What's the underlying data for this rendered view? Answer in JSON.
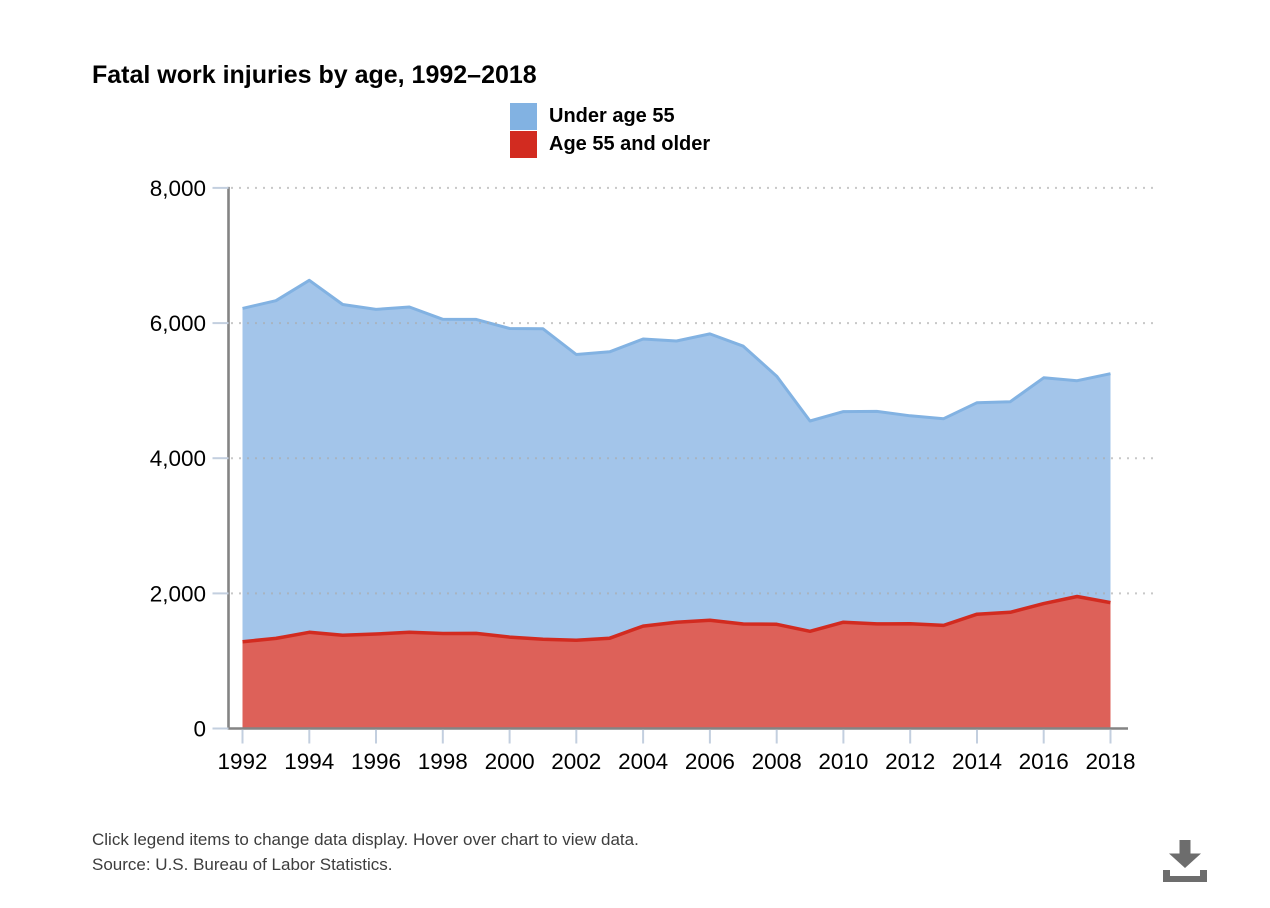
{
  "title": "Fatal work injuries by age, 1992–2018",
  "legend": [
    {
      "label": "Under age 55",
      "color": "#82B2E2"
    },
    {
      "label": "Age 55 and older",
      "color": "#D22B20"
    }
  ],
  "footer": {
    "note": "Click legend items to change data display. Hover over chart to view data.",
    "source": "Source: U.S. Bureau of Labor Statistics."
  },
  "icons": {
    "download": "download-icon"
  },
  "chart_data": {
    "type": "area",
    "stacked": true,
    "title": "Fatal work injuries by age, 1992–2018",
    "xlabel": "",
    "ylabel": "",
    "x": [
      1992,
      1993,
      1994,
      1995,
      1996,
      1997,
      1998,
      1999,
      2000,
      2001,
      2002,
      2003,
      2004,
      2005,
      2006,
      2007,
      2008,
      2009,
      2010,
      2011,
      2012,
      2013,
      2014,
      2015,
      2016,
      2017,
      2018
    ],
    "series": [
      {
        "name": "Age 55 and older",
        "stroke": "#D22B20",
        "fill": "#DD6159",
        "values": [
          1284,
          1334,
          1423,
          1379,
          1399,
          1423,
          1406,
          1407,
          1352,
          1322,
          1307,
          1336,
          1516,
          1571,
          1601,
          1546,
          1542,
          1438,
          1573,
          1548,
          1550,
          1526,
          1691,
          1720,
          1848,
          1954,
          1863
        ]
      },
      {
        "name": "Under age 55",
        "stroke": "#82B2E2",
        "fill": "#A3C5EA",
        "values": [
          4933,
          4997,
          5209,
          4896,
          4803,
          4815,
          4649,
          4647,
          4568,
          4593,
          4227,
          4239,
          4248,
          4163,
          4239,
          4111,
          3672,
          3113,
          3117,
          3145,
          3078,
          3059,
          3130,
          3116,
          3342,
          3193,
          3387
        ]
      }
    ],
    "totals": [
      6217,
      6331,
      6632,
      6275,
      6202,
      6238,
      6055,
      6054,
      5920,
      5915,
      5534,
      5575,
      5764,
      5734,
      5840,
      5657,
      5214,
      4551,
      4690,
      4693,
      4628,
      4585,
      4821,
      4836,
      5190,
      5147,
      5250
    ],
    "ylim": [
      0,
      8000
    ],
    "ytick_values": [
      0,
      2000,
      4000,
      6000,
      8000
    ],
    "ytick_labels": [
      "0",
      "2,000",
      "4,000",
      "6,000",
      "8,000"
    ],
    "xtick_values": [
      1992,
      1994,
      1996,
      1998,
      2000,
      2002,
      2004,
      2006,
      2008,
      2010,
      2012,
      2014,
      2016,
      2018
    ],
    "xtick_labels": [
      "1992",
      "1994",
      "1996",
      "1998",
      "2000",
      "2002",
      "2004",
      "2006",
      "2008",
      "2010",
      "2012",
      "2014",
      "2016",
      "2018"
    ],
    "grid": "dotted horizontal gridlines",
    "legend_position": "top-center",
    "colors": {
      "axis": "#848484",
      "tick": "#C3CFDF",
      "grid": "#ABABAB",
      "text": "#000000"
    }
  }
}
